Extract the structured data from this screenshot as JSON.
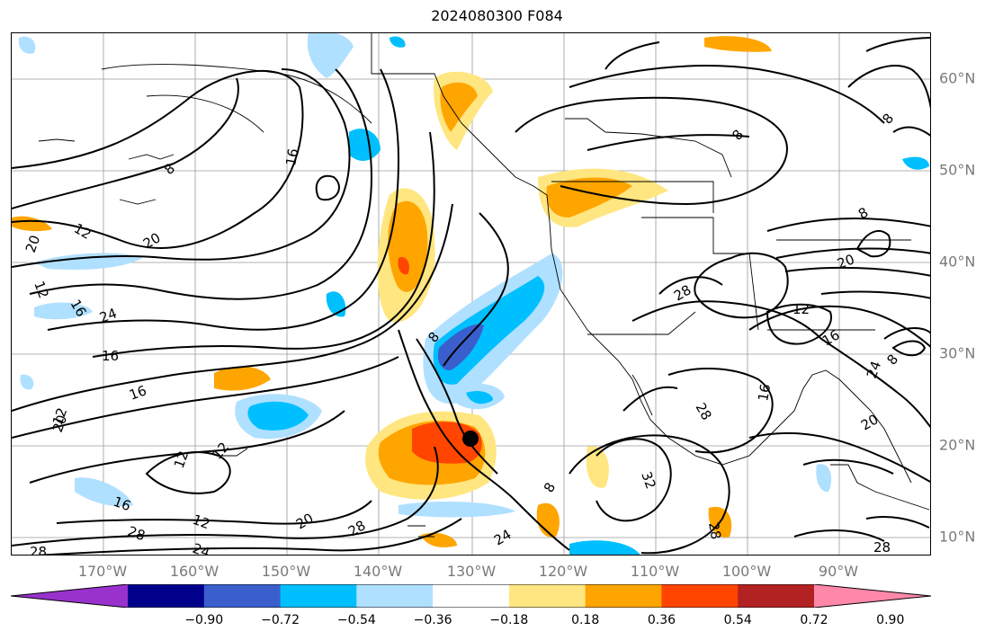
{
  "title": "2024080300 F084",
  "lon_labels": [
    "170°W",
    "160°W",
    "150°W",
    "140°W",
    "130°W",
    "120°W",
    "110°W",
    "100°W",
    "90°W"
  ],
  "lat_labels": [
    "60°N",
    "50°N",
    "40°N",
    "30°N",
    "20°N",
    "10°N"
  ],
  "contour_labels": [
    "8",
    "12",
    "16",
    "20",
    "24",
    "28",
    "32"
  ],
  "colorbar": {
    "ticks": [
      "−0.90",
      "−0.72",
      "−0.54",
      "−0.36",
      "−0.18",
      "0.18",
      "0.36",
      "0.54",
      "0.72",
      "0.90"
    ],
    "colors": [
      "#9932cc",
      "#00008b",
      "#3a5fcd",
      "#00bfff",
      "#b0e0ff",
      "#ffffff",
      "#ffe680",
      "#ffa500",
      "#ff4500",
      "#b22222",
      "#ff88aa"
    ]
  }
}
